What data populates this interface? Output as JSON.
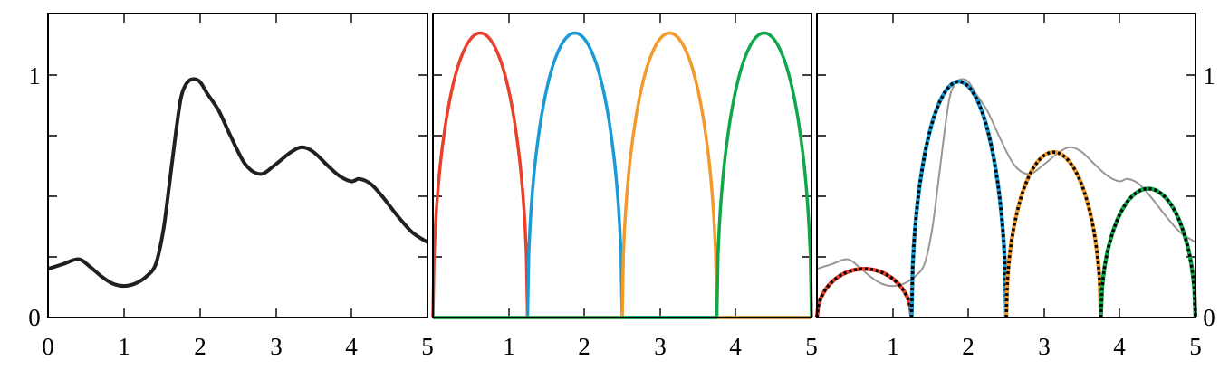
{
  "chart_data": [
    {
      "type": "line",
      "xlim": [
        0,
        5
      ],
      "ylim": [
        0,
        1.25
      ],
      "x_ticks": [
        "0",
        "1",
        "2",
        "3",
        "4",
        "5"
      ],
      "y_ticks": [
        "0",
        "1"
      ],
      "series": [
        {
          "color": "#231f20",
          "x": [
            0,
            0.2,
            0.4,
            0.55,
            0.7,
            0.85,
            1.0,
            1.15,
            1.3,
            1.42,
            1.52,
            1.6,
            1.68,
            1.75,
            1.82,
            1.9,
            2.0,
            2.1,
            2.25,
            2.4,
            2.6,
            2.8,
            3.0,
            3.2,
            3.35,
            3.5,
            3.7,
            3.85,
            4.0,
            4.1,
            4.25,
            4.4,
            4.6,
            4.8,
            5.0
          ],
          "y": [
            0.2,
            0.22,
            0.24,
            0.21,
            0.17,
            0.14,
            0.13,
            0.14,
            0.17,
            0.22,
            0.36,
            0.55,
            0.75,
            0.9,
            0.96,
            0.98,
            0.97,
            0.92,
            0.85,
            0.75,
            0.63,
            0.59,
            0.63,
            0.68,
            0.7,
            0.68,
            0.62,
            0.58,
            0.56,
            0.57,
            0.55,
            0.5,
            0.42,
            0.35,
            0.31
          ]
        }
      ]
    },
    {
      "type": "line",
      "xlim": [
        0,
        5
      ],
      "ylim": [
        0,
        1.25
      ],
      "x_ticks": [
        "0",
        "1",
        "2",
        "3",
        "4",
        "5"
      ],
      "series": [
        {
          "color": "#e8402a",
          "shape": "semi-ellipse",
          "x_start": 0.0,
          "x_end": 1.25,
          "peak": 1.17
        },
        {
          "color": "#1a9ad6",
          "shape": "semi-ellipse",
          "x_start": 1.25,
          "x_end": 2.5,
          "peak": 1.17
        },
        {
          "color": "#f29a2e",
          "shape": "semi-ellipse",
          "x_start": 2.5,
          "x_end": 3.75,
          "peak": 1.17
        },
        {
          "color": "#10a64a",
          "shape": "semi-ellipse",
          "x_start": 3.75,
          "x_end": 5.0,
          "peak": 1.17
        }
      ]
    },
    {
      "type": "line",
      "xlim": [
        0,
        5
      ],
      "ylim": [
        0,
        1.25
      ],
      "x_ticks": [
        "0",
        "1",
        "2",
        "3",
        "4",
        "5"
      ],
      "y_ticks": [
        "0",
        "1"
      ],
      "reference_color": "#9a9696",
      "series": [
        {
          "color": "#e8402a",
          "shape": "semi-ellipse",
          "x_start": 0.0,
          "x_end": 1.25,
          "peak": 0.2
        },
        {
          "color": "#1a9ad6",
          "shape": "semi-ellipse",
          "x_start": 1.25,
          "x_end": 2.5,
          "peak": 0.97
        },
        {
          "color": "#f29a2e",
          "shape": "semi-ellipse",
          "x_start": 2.5,
          "x_end": 3.75,
          "peak": 0.68
        },
        {
          "color": "#10a64a",
          "shape": "semi-ellipse",
          "x_start": 3.75,
          "x_end": 5.0,
          "peak": 0.53
        }
      ]
    }
  ]
}
